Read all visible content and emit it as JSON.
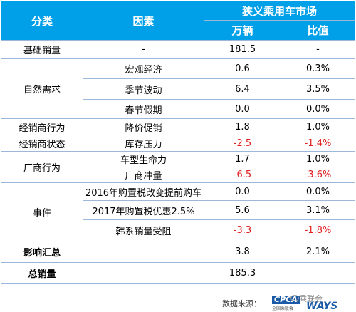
{
  "header": {
    "col1": "分类",
    "col2": "因素",
    "group": "狭义乘用车市场",
    "col3": "万辆",
    "col4": "比值"
  },
  "rows": [
    {
      "cat": "基础销量",
      "factor": "-",
      "value": "181.5",
      "ratio": "-"
    },
    {
      "cat": "自然需求",
      "factor": "宏观经济",
      "value": "0.6",
      "ratio": "0.3%"
    },
    {
      "cat": "",
      "factor": "季节波动",
      "value": "6.4",
      "ratio": "3.5%"
    },
    {
      "cat": "",
      "factor": "春节假期",
      "value": "0.0",
      "ratio": "0.0%"
    },
    {
      "cat": "经销商行为",
      "factor": "降价促销",
      "value": "1.8",
      "ratio": "1.0%"
    },
    {
      "cat": "经销商状态",
      "factor": "库存压力",
      "value": "-2.5",
      "ratio": "-1.4%"
    },
    {
      "cat": "厂商行为",
      "factor": "车型生命力",
      "value": "1.7",
      "ratio": "1.0%"
    },
    {
      "cat": "",
      "factor": "厂商冲量",
      "value": "-6.5",
      "ratio": "-3.6%"
    },
    {
      "cat": "事件",
      "factor": "2016年购置税改变提前购车",
      "value": "0.0",
      "ratio": "0.0%"
    },
    {
      "cat": "",
      "factor": "2017年购置税优惠2.5%",
      "value": "5.6",
      "ratio": "3.1%"
    },
    {
      "cat": "",
      "factor": "韩系销量受阻",
      "value": "-3.3",
      "ratio": "-1.8%"
    },
    {
      "cat": "影响汇总",
      "factor": "",
      "value": "3.8",
      "ratio": "2.1%"
    },
    {
      "cat": "总销量",
      "factor": "",
      "value": "185.3",
      "ratio": ""
    }
  ],
  "footer": {
    "source_label": "数据来源：",
    "logo": "CPCA",
    "logo_sub": "全国乘联会",
    "watermark": "乘联会",
    "ways": "WAYS"
  },
  "colors": {
    "header_bg": "#00a0e9",
    "negative": "#e02020",
    "border": "#9bb7d9"
  }
}
